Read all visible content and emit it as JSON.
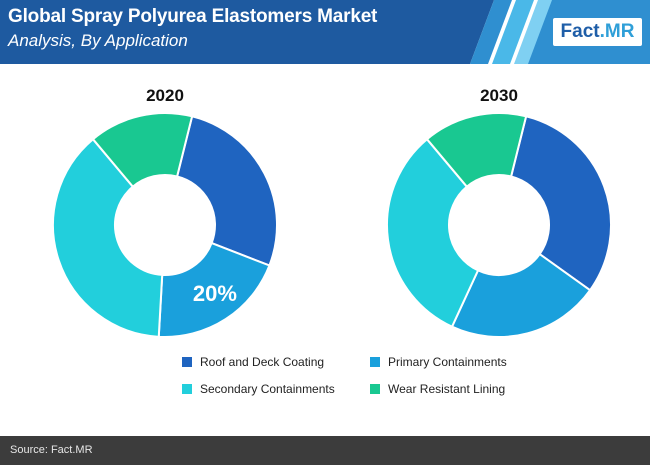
{
  "header": {
    "title": "Global Spray Polyurea Elastomers Market",
    "subtitle": "Analysis, By Application",
    "logo_part1": "Fact",
    "logo_part2": ".MR"
  },
  "colors": {
    "header_bg": "#1e5aa0",
    "stripe_light": "#4ab8e8",
    "stripe_mid": "#2f8fd0"
  },
  "chart_data": [
    {
      "type": "pie",
      "title": "2020",
      "labels": [
        "Roof and Deck Coating",
        "Primary Containments",
        "Secondary Containments",
        "Wear Resistant Lining"
      ],
      "values": [
        27,
        20,
        38,
        15
      ],
      "data_labels": [
        "",
        "20%",
        "",
        ""
      ],
      "colors": [
        "#1f64c0",
        "#1aa0dc",
        "#22cfdc",
        "#19c891"
      ]
    },
    {
      "type": "pie",
      "title": "2030",
      "labels": [
        "Roof and Deck Coating",
        "Primary Containments",
        "Secondary Containments",
        "Wear Resistant Lining"
      ],
      "values": [
        31,
        22,
        32,
        15
      ],
      "data_labels": [
        "",
        "",
        "",
        ""
      ],
      "colors": [
        "#1f64c0",
        "#1aa0dc",
        "#22cfdc",
        "#19c891"
      ]
    }
  ],
  "legend": [
    {
      "label": "Roof and Deck Coating",
      "color": "#1f64c0"
    },
    {
      "label": "Primary Containments",
      "color": "#1aa0dc"
    },
    {
      "label": "Secondary Containments",
      "color": "#22cfdc"
    },
    {
      "label": "Wear Resistant Lining",
      "color": "#19c891"
    }
  ],
  "footer": {
    "source": "Source: Fact.MR"
  }
}
